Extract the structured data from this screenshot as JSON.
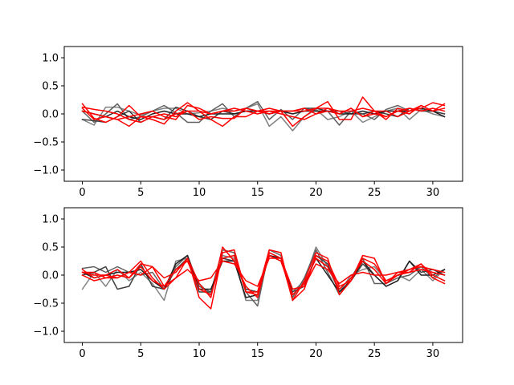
{
  "chart_data": [
    {
      "type": "line",
      "xlim": [
        -1.55,
        32.55
      ],
      "ylim": [
        -1.2,
        1.2
      ],
      "xticks": [
        0,
        5,
        10,
        15,
        20,
        25,
        30
      ],
      "yticks": [
        -1.0,
        -0.5,
        0.0,
        0.5,
        1.0
      ],
      "xtick_labels": [
        "0",
        "5",
        "10",
        "15",
        "20",
        "25",
        "30"
      ],
      "ytick_labels": [
        "−1.0",
        "−0.5",
        "0.0",
        "0.5",
        "1.0"
      ],
      "grid": false,
      "x": [
        0,
        1,
        2,
        3,
        4,
        5,
        6,
        7,
        8,
        9,
        10,
        11,
        12,
        13,
        14,
        15,
        16,
        17,
        18,
        19,
        20,
        21,
        22,
        23,
        24,
        25,
        26,
        27,
        28,
        29,
        30,
        31
      ],
      "series": [
        {
          "color": "#808080",
          "values": [
            -0.1,
            -0.2,
            0.12,
            0.12,
            0.05,
            -0.02,
            0.05,
            0.1,
            0.1,
            0.0,
            0.02,
            0.05,
            0.1,
            0.05,
            0.1,
            0.18,
            -0.22,
            -0.05,
            -0.3,
            -0.05,
            0.08,
            -0.1,
            -0.05,
            0.05,
            -0.15,
            -0.05,
            0.05,
            0.1,
            -0.1,
            0.08,
            0.0,
            -0.05
          ]
        },
        {
          "color": "#606060",
          "values": [
            0.05,
            -0.15,
            0.0,
            0.18,
            -0.1,
            -0.05,
            0.05,
            0.15,
            0.02,
            -0.15,
            -0.15,
            0.05,
            0.18,
            -0.05,
            0.1,
            0.22,
            -0.1,
            0.08,
            -0.1,
            0.1,
            0.05,
            0.05,
            -0.2,
            0.05,
            0.0,
            -0.1,
            0.08,
            0.15,
            0.05,
            0.1,
            0.05,
            0.0
          ]
        },
        {
          "color": "#404040",
          "values": [
            -0.1,
            -0.12,
            -0.15,
            -0.05,
            0.05,
            -0.15,
            -0.05,
            -0.1,
            0.12,
            0.05,
            -0.05,
            -0.1,
            0.05,
            0.0,
            0.05,
            0.05,
            0.0,
            0.05,
            0.05,
            0.1,
            0.1,
            0.05,
            0.05,
            0.0,
            0.0,
            0.05,
            0.0,
            -0.05,
            0.1,
            0.05,
            0.05,
            0.0
          ]
        },
        {
          "color": "#202020",
          "values": [
            0.05,
            0.0,
            -0.05,
            0.05,
            -0.05,
            -0.1,
            0.0,
            0.05,
            0.0,
            0.0,
            -0.05,
            0.0,
            0.0,
            0.0,
            0.05,
            0.05,
            0.0,
            0.05,
            0.0,
            0.05,
            0.05,
            0.05,
            0.0,
            0.0,
            0.05,
            0.0,
            0.05,
            0.05,
            0.05,
            0.1,
            0.05,
            -0.05
          ]
        },
        {
          "color": "#ff0000",
          "values": [
            0.18,
            -0.08,
            -0.15,
            -0.05,
            0.15,
            -0.05,
            -0.1,
            -0.18,
            0.05,
            0.2,
            0.05,
            -0.1,
            -0.22,
            -0.05,
            -0.05,
            0.05,
            0.0,
            0.05,
            -0.22,
            -0.05,
            0.1,
            0.22,
            -0.1,
            -0.1,
            0.3,
            0.05,
            -0.1,
            0.1,
            0.05,
            0.15,
            0.05,
            0.18
          ]
        },
        {
          "color": "#ff0000",
          "values": [
            0.12,
            0.08,
            0.05,
            0.0,
            -0.1,
            -0.15,
            -0.05,
            0.0,
            -0.05,
            0.05,
            0.05,
            0.0,
            0.05,
            0.05,
            0.1,
            0.05,
            0.1,
            0.05,
            0.05,
            0.05,
            0.1,
            0.1,
            0.05,
            0.05,
            0.1,
            0.05,
            0.05,
            -0.05,
            0.05,
            0.1,
            0.2,
            0.15
          ]
        },
        {
          "color": "#ff0000",
          "values": [
            0.05,
            0.0,
            -0.05,
            -0.1,
            -0.05,
            0.0,
            0.05,
            -0.05,
            -0.1,
            0.15,
            0.1,
            0.0,
            0.05,
            0.1,
            0.05,
            0.0,
            0.05,
            0.05,
            0.05,
            0.1,
            0.0,
            0.05,
            0.0,
            0.1,
            -0.05,
            0.05,
            -0.05,
            0.05,
            0.1,
            0.05,
            0.1,
            0.05
          ]
        },
        {
          "color": "#ff0000",
          "values": [
            0.1,
            -0.1,
            -0.05,
            -0.1,
            -0.22,
            -0.05,
            -0.05,
            -0.1,
            0.0,
            0.05,
            -0.1,
            -0.05,
            -0.08,
            -0.08,
            0.1,
            0.05,
            0.05,
            0.0,
            -0.05,
            -0.1,
            0.0,
            0.1,
            0.0,
            0.1,
            -0.05,
            0.0,
            -0.05,
            0.05,
            0.0,
            0.15,
            0.05,
            0.1
          ]
        }
      ]
    },
    {
      "type": "line",
      "xlim": [
        -1.55,
        32.55
      ],
      "ylim": [
        -1.2,
        1.2
      ],
      "xticks": [
        0,
        5,
        10,
        15,
        20,
        25,
        30
      ],
      "yticks": [
        -1.0,
        -0.5,
        0.0,
        0.5,
        1.0
      ],
      "xtick_labels": [
        "0",
        "5",
        "10",
        "15",
        "20",
        "25",
        "30"
      ],
      "ytick_labels": [
        "−1.0",
        "−0.5",
        "0.0",
        "0.5",
        "1.0"
      ],
      "grid": false,
      "x": [
        0,
        1,
        2,
        3,
        4,
        5,
        6,
        7,
        8,
        9,
        10,
        11,
        12,
        13,
        14,
        15,
        16,
        17,
        18,
        19,
        20,
        21,
        22,
        23,
        24,
        25,
        26,
        27,
        28,
        29,
        30,
        31
      ],
      "series": [
        {
          "color": "#808080",
          "values": [
            -0.25,
            0.05,
            -0.2,
            0.1,
            -0.1,
            0.05,
            -0.15,
            -0.45,
            0.25,
            0.3,
            -0.15,
            -0.35,
            0.35,
            0.3,
            -0.45,
            -0.45,
            0.4,
            0.3,
            -0.3,
            -0.1,
            0.5,
            0.15,
            -0.3,
            0.0,
            0.1,
            0.15,
            -0.1,
            0.0,
            -0.1,
            0.1,
            -0.1,
            0.1
          ]
        },
        {
          "color": "#606060",
          "values": [
            0.12,
            0.15,
            0.05,
            0.15,
            0.05,
            0.0,
            0.05,
            -0.25,
            0.15,
            0.35,
            -0.2,
            -0.3,
            0.45,
            0.4,
            -0.3,
            -0.55,
            0.45,
            0.35,
            -0.4,
            -0.05,
            0.45,
            0.05,
            -0.35,
            -0.05,
            0.3,
            -0.15,
            -0.15,
            -0.05,
            0.0,
            0.15,
            -0.05,
            0.1
          ]
        },
        {
          "color": "#404040",
          "values": [
            0.0,
            0.05,
            0.15,
            -0.25,
            -0.2,
            0.2,
            -0.2,
            -0.25,
            0.1,
            0.3,
            -0.3,
            -0.3,
            0.3,
            0.25,
            -0.25,
            -0.3,
            0.35,
            0.25,
            -0.3,
            -0.2,
            0.35,
            0.2,
            -0.3,
            -0.1,
            0.2,
            0.0,
            -0.2,
            -0.1,
            0.25,
            0.05,
            0.1,
            0.0
          ]
        },
        {
          "color": "#202020",
          "values": [
            0.05,
            -0.05,
            0.0,
            0.05,
            0.05,
            0.1,
            -0.1,
            -0.25,
            0.2,
            0.35,
            -0.25,
            -0.25,
            0.25,
            0.25,
            -0.4,
            -0.35,
            0.35,
            0.3,
            -0.35,
            -0.15,
            0.3,
            0.0,
            -0.3,
            -0.1,
            0.25,
            0.0,
            -0.2,
            -0.1,
            0.25,
            0.0,
            0.0,
            0.1
          ]
        },
        {
          "color": "#ff0000",
          "values": [
            0.1,
            -0.05,
            0.0,
            -0.05,
            0.05,
            0.25,
            -0.05,
            -0.25,
            -0.05,
            0.3,
            -0.4,
            -0.6,
            0.4,
            0.45,
            -0.3,
            -0.3,
            0.45,
            0.4,
            -0.45,
            -0.1,
            0.4,
            0.3,
            -0.35,
            -0.1,
            0.35,
            0.3,
            -0.15,
            0.05,
            0.1,
            0.2,
            0.0,
            -0.1
          ]
        },
        {
          "color": "#ff0000",
          "values": [
            0.05,
            0.05,
            -0.05,
            -0.05,
            0.05,
            0.0,
            0.15,
            -0.05,
            0.05,
            0.3,
            -0.15,
            -0.4,
            0.5,
            0.25,
            -0.2,
            -0.4,
            0.4,
            0.3,
            -0.45,
            -0.25,
            0.35,
            0.25,
            -0.2,
            -0.1,
            0.3,
            0.2,
            -0.1,
            0.0,
            0.1,
            0.15,
            0.1,
            0.05
          ]
        },
        {
          "color": "#ff0000",
          "values": [
            0.0,
            -0.1,
            -0.05,
            0.0,
            -0.05,
            0.2,
            0.15,
            -0.2,
            -0.05,
            0.1,
            -0.1,
            -0.05,
            0.25,
            0.2,
            -0.1,
            -0.2,
            0.3,
            0.3,
            -0.25,
            -0.2,
            0.2,
            0.1,
            -0.15,
            0.0,
            0.05,
            0.0,
            0.0,
            0.05,
            0.05,
            0.1,
            0.05,
            0.0
          ]
        },
        {
          "color": "#ff0000",
          "values": [
            0.05,
            0.0,
            0.0,
            0.1,
            -0.05,
            0.15,
            -0.1,
            -0.2,
            0.1,
            0.25,
            -0.25,
            -0.35,
            0.3,
            0.35,
            -0.3,
            -0.35,
            0.35,
            0.25,
            -0.35,
            -0.15,
            0.3,
            0.15,
            -0.25,
            -0.05,
            0.25,
            0.1,
            -0.15,
            0.0,
            0.05,
            0.2,
            -0.05,
            -0.15
          ]
        }
      ]
    }
  ]
}
